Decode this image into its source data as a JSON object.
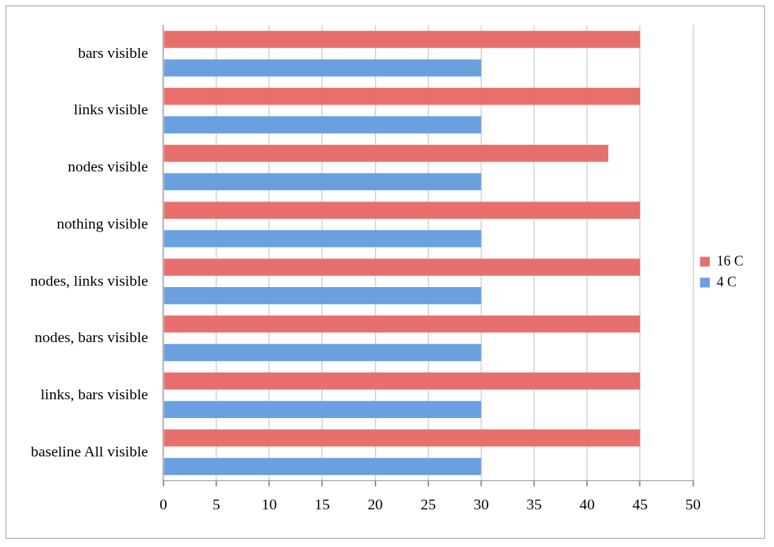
{
  "chart_data": {
    "type": "bar",
    "orientation": "horizontal",
    "categories": [
      "bars visible",
      "links visible",
      "nodes visible",
      "nothing visible",
      "nodes, links visible",
      "nodes, bars visible",
      "links, bars visible",
      "baseline All visible"
    ],
    "series": [
      {
        "name": "16 C",
        "color": "#e8706c",
        "values": [
          45,
          45,
          42,
          45,
          45,
          45,
          45,
          45
        ]
      },
      {
        "name": "4 C",
        "color": "#6a9fe0",
        "values": [
          30,
          30,
          30,
          30,
          30,
          30,
          30,
          30
        ]
      }
    ],
    "xlim": [
      0,
      50
    ],
    "xticks": [
      0,
      5,
      10,
      15,
      20,
      25,
      30,
      35,
      40,
      45,
      50
    ],
    "grid": "x",
    "legend": "right"
  }
}
